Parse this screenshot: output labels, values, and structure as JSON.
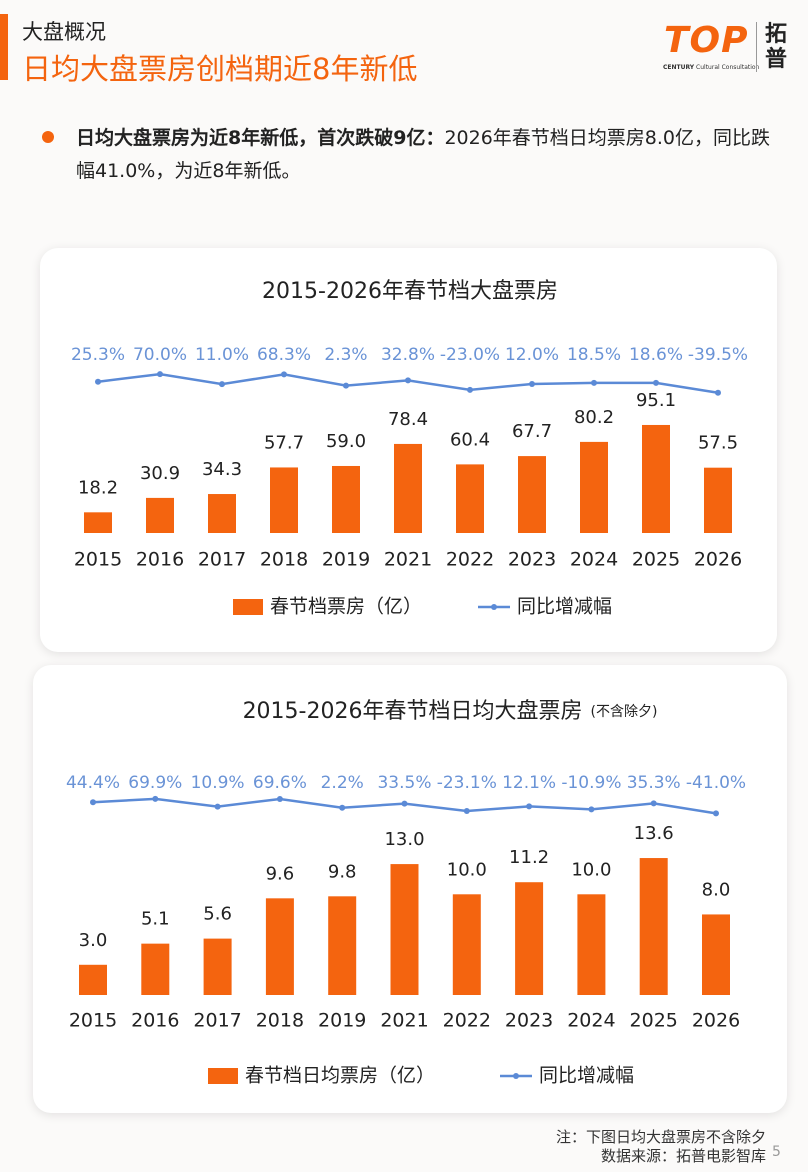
{
  "header": {
    "section": "大盘概况",
    "title": "日均大盘票房创档期近8年新低"
  },
  "logo": {
    "mark": "TOP",
    "tagline_bold": "CENTURY",
    "tagline": "Cultural Consultation",
    "brand": "拓普"
  },
  "bullet": {
    "bold": "日均大盘票房为近8年新低，首次跌破9亿：",
    "text": "2026年春节档日均票房8.0亿，同比跌幅41.0%，为近8年新低。"
  },
  "chart_data": [
    {
      "type": "bar_line",
      "title": "2015-2026年春节档大盘票房",
      "categories": [
        "2015",
        "2016",
        "2017",
        "2018",
        "2019",
        "2021",
        "2022",
        "2023",
        "2024",
        "2025",
        "2026"
      ],
      "series": [
        {
          "name": "春节档票房（亿）",
          "color": "#f4640f",
          "type": "bar",
          "values": [
            18.2,
            30.9,
            34.3,
            57.7,
            59.0,
            78.4,
            60.4,
            67.7,
            80.2,
            95.1,
            57.5
          ],
          "value_labels": [
            "18.2",
            "30.9",
            "34.3",
            "57.7",
            "59.0",
            "78.4",
            "60.4",
            "67.7",
            "80.2",
            "95.1",
            "57.5"
          ]
        },
        {
          "name": "同比增减幅",
          "color": "#5b8ad6",
          "type": "line",
          "values": [
            25.3,
            70.0,
            11.0,
            68.3,
            2.3,
            32.8,
            -23.0,
            12.0,
            18.5,
            18.6,
            -39.5
          ],
          "value_labels": [
            "25.3%",
            "70.0%",
            "11.0%",
            "68.3%",
            "2.3%",
            "32.8%",
            "-23.0%",
            "12.0%",
            "18.5%",
            "18.6%",
            "-39.5%"
          ]
        }
      ]
    },
    {
      "type": "bar_line",
      "title": "2015-2026年春节档日均大盘票房",
      "subtitle": "(不含除夕)",
      "categories": [
        "2015",
        "2016",
        "2017",
        "2018",
        "2019",
        "2021",
        "2022",
        "2023",
        "2024",
        "2025",
        "2026"
      ],
      "series": [
        {
          "name": "春节档日均票房（亿）",
          "color": "#f4640f",
          "type": "bar",
          "values": [
            3.0,
            5.1,
            5.6,
            9.6,
            9.8,
            13.0,
            10.0,
            11.2,
            10.0,
            13.6,
            8.0
          ],
          "value_labels": [
            "3.0",
            "5.1",
            "5.6",
            "9.6",
            "9.8",
            "13.0",
            "10.0",
            "11.2",
            "10.0",
            "13.6",
            "8.0"
          ]
        },
        {
          "name": "同比增减幅",
          "color": "#5b8ad6",
          "type": "line",
          "values": [
            44.4,
            69.9,
            10.9,
            69.6,
            2.2,
            33.5,
            -23.1,
            12.1,
            -10.9,
            35.3,
            -41.0
          ],
          "value_labels": [
            "44.4%",
            "69.9%",
            "10.9%",
            "69.6%",
            "2.2%",
            "33.5%",
            "-23.1%",
            "12.1%",
            "-10.9%",
            "35.3%",
            "-41.0%"
          ]
        }
      ]
    }
  ],
  "footer": {
    "note": "注：下图日均大盘票房不含除夕",
    "source": "数据来源：拓普电影智库",
    "page": "5"
  }
}
